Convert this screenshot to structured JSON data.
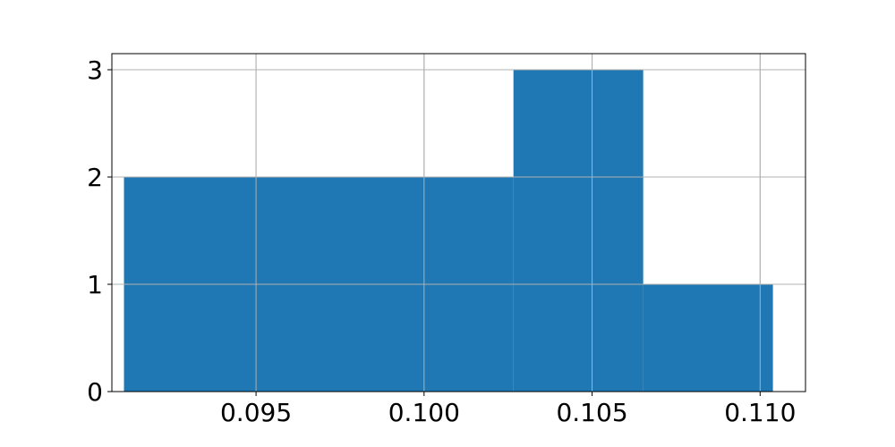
{
  "chart_data": {
    "type": "bar",
    "title": "",
    "xlabel": "",
    "ylabel": "",
    "grid": true,
    "bars": [
      {
        "x0": 0.09107,
        "x1": 0.10266,
        "value": 2
      },
      {
        "x0": 0.10266,
        "x1": 0.10652,
        "value": 3
      },
      {
        "x0": 0.10652,
        "x1": 0.11038,
        "value": 1
      }
    ],
    "xlim": [
      0.09071,
      0.11135
    ],
    "ylim": [
      0,
      3.15
    ],
    "xticks": [
      {
        "value": 0.095,
        "label": "0.095"
      },
      {
        "value": 0.1,
        "label": "0.100"
      },
      {
        "value": 0.105,
        "label": "0.105"
      },
      {
        "value": 0.11,
        "label": "0.110"
      }
    ],
    "yticks": [
      {
        "value": 0,
        "label": "0"
      },
      {
        "value": 1,
        "label": "1"
      },
      {
        "value": 2,
        "label": "2"
      },
      {
        "value": 3,
        "label": "3"
      }
    ],
    "colors": {
      "bar": "#1f77b4",
      "grid": "#b0b0b0",
      "axis": "#000000",
      "text": "#000000"
    }
  }
}
